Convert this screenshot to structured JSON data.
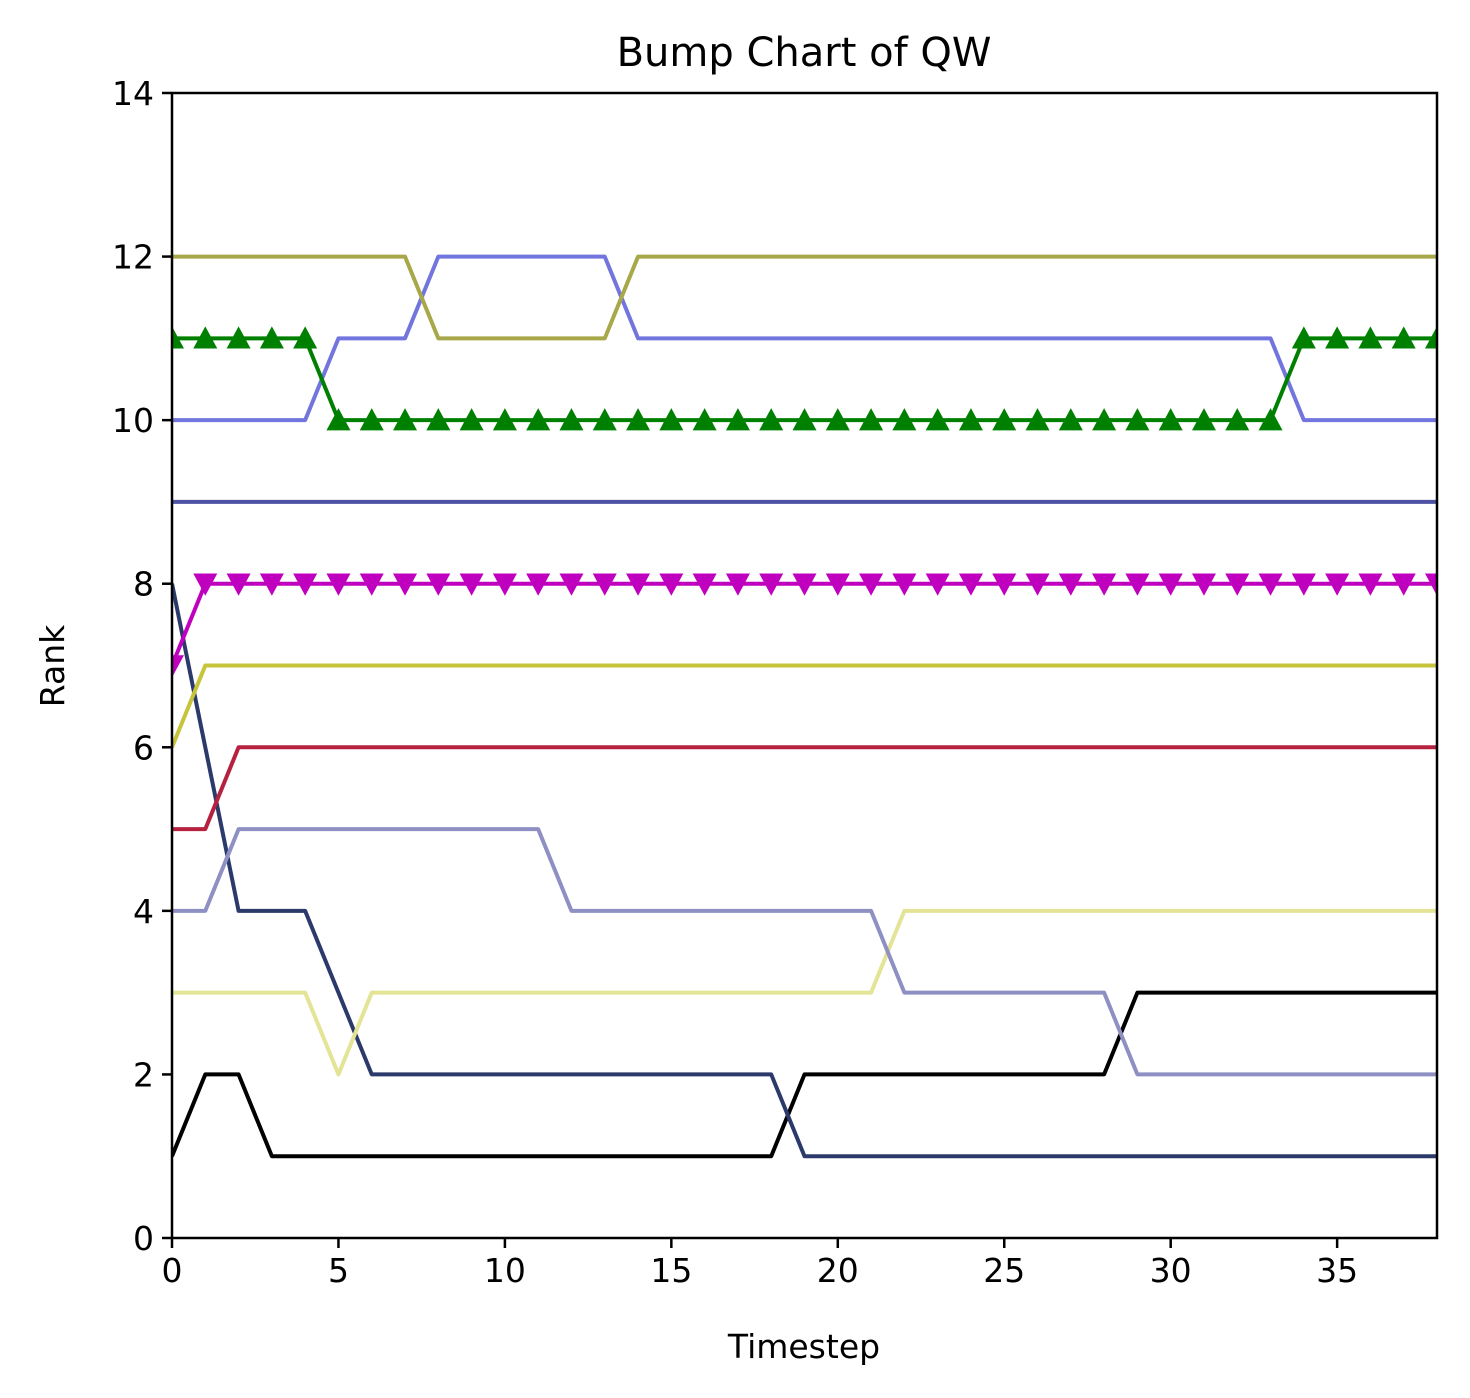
{
  "chart_data": {
    "type": "line",
    "title": "Bump Chart of QW",
    "xlabel": "Timestep",
    "ylabel": "Rank",
    "xlim": [
      0,
      38
    ],
    "ylim": [
      0,
      14
    ],
    "xticks": [
      0,
      5,
      10,
      15,
      20,
      25,
      30,
      35
    ],
    "yticks": [
      0,
      2,
      4,
      6,
      8,
      10,
      12,
      14
    ],
    "grid": false,
    "x": [
      0,
      1,
      2,
      3,
      4,
      5,
      6,
      7,
      8,
      9,
      10,
      11,
      12,
      13,
      14,
      15,
      16,
      17,
      18,
      19,
      20,
      21,
      22,
      23,
      24,
      25,
      26,
      27,
      28,
      29,
      30,
      31,
      32,
      33,
      34,
      35,
      36,
      37,
      38
    ],
    "series": [
      {
        "color": "#000000",
        "marker": "none",
        "values": [
          1,
          2,
          2,
          1,
          1,
          1,
          1,
          1,
          1,
          1,
          1,
          1,
          1,
          1,
          1,
          1,
          1,
          1,
          1,
          2,
          2,
          2,
          2,
          2,
          2,
          2,
          2,
          2,
          2,
          3,
          3,
          3,
          3,
          3,
          3,
          3,
          3,
          3,
          3
        ]
      },
      {
        "color": "#2b3a6b",
        "marker": "none",
        "values": [
          8,
          6,
          4,
          4,
          4,
          3,
          2,
          2,
          2,
          2,
          2,
          2,
          2,
          2,
          2,
          2,
          2,
          2,
          2,
          1,
          1,
          1,
          1,
          1,
          1,
          1,
          1,
          1,
          1,
          1,
          1,
          1,
          1,
          1,
          1,
          1,
          1,
          1,
          1
        ]
      },
      {
        "color": "#e3e495",
        "marker": "none",
        "values": [
          3,
          3,
          3,
          3,
          3,
          2,
          3,
          3,
          3,
          3,
          3,
          3,
          3,
          3,
          3,
          3,
          3,
          3,
          3,
          3,
          3,
          3,
          4,
          4,
          4,
          4,
          4,
          4,
          4,
          4,
          4,
          4,
          4,
          4,
          4,
          4,
          4,
          4,
          4
        ]
      },
      {
        "color": "#8e90c4",
        "marker": "none",
        "values": [
          4,
          4,
          5,
          5,
          5,
          5,
          5,
          5,
          5,
          5,
          5,
          5,
          4,
          4,
          4,
          4,
          4,
          4,
          4,
          4,
          4,
          4,
          3,
          3,
          3,
          3,
          3,
          3,
          3,
          2,
          2,
          2,
          2,
          2,
          2,
          2,
          2,
          2,
          2
        ]
      },
      {
        "color": "#b5213f",
        "marker": "none",
        "values": [
          5,
          5,
          6,
          6,
          6,
          6,
          6,
          6,
          6,
          6,
          6,
          6,
          6,
          6,
          6,
          6,
          6,
          6,
          6,
          6,
          6,
          6,
          6,
          6,
          6,
          6,
          6,
          6,
          6,
          6,
          6,
          6,
          6,
          6,
          6,
          6,
          6,
          6,
          6
        ]
      },
      {
        "color": "#c6c43a",
        "marker": "none",
        "values": [
          6,
          7,
          7,
          7,
          7,
          7,
          7,
          7,
          7,
          7,
          7,
          7,
          7,
          7,
          7,
          7,
          7,
          7,
          7,
          7,
          7,
          7,
          7,
          7,
          7,
          7,
          7,
          7,
          7,
          7,
          7,
          7,
          7,
          7,
          7,
          7,
          7,
          7,
          7
        ]
      },
      {
        "color": "#bf00bf",
        "marker": "triangle-down",
        "values": [
          7,
          8,
          8,
          8,
          8,
          8,
          8,
          8,
          8,
          8,
          8,
          8,
          8,
          8,
          8,
          8,
          8,
          8,
          8,
          8,
          8,
          8,
          8,
          8,
          8,
          8,
          8,
          8,
          8,
          8,
          8,
          8,
          8,
          8,
          8,
          8,
          8,
          8,
          8
        ]
      },
      {
        "color": "#4e52a3",
        "marker": "none",
        "values": [
          9,
          9,
          9,
          9,
          9,
          9,
          9,
          9,
          9,
          9,
          9,
          9,
          9,
          9,
          9,
          9,
          9,
          9,
          9,
          9,
          9,
          9,
          9,
          9,
          9,
          9,
          9,
          9,
          9,
          9,
          9,
          9,
          9,
          9,
          9,
          9,
          9,
          9,
          9
        ]
      },
      {
        "color": "#7375de",
        "marker": "none",
        "values": [
          10,
          10,
          10,
          10,
          10,
          11,
          11,
          11,
          12,
          12,
          12,
          12,
          12,
          12,
          11,
          11,
          11,
          11,
          11,
          11,
          11,
          11,
          11,
          11,
          11,
          11,
          11,
          11,
          11,
          11,
          11,
          11,
          11,
          11,
          10,
          10,
          10,
          10,
          10
        ]
      },
      {
        "color": "#008000",
        "marker": "triangle-up",
        "values": [
          11,
          11,
          11,
          11,
          11,
          10,
          10,
          10,
          10,
          10,
          10,
          10,
          10,
          10,
          10,
          10,
          10,
          10,
          10,
          10,
          10,
          10,
          10,
          10,
          10,
          10,
          10,
          10,
          10,
          10,
          10,
          10,
          10,
          10,
          11,
          11,
          11,
          11,
          11
        ]
      },
      {
        "color": "#a8a84a",
        "marker": "none",
        "values": [
          12,
          12,
          12,
          12,
          12,
          12,
          12,
          12,
          11,
          11,
          11,
          11,
          11,
          11,
          12,
          12,
          12,
          12,
          12,
          12,
          12,
          12,
          12,
          12,
          12,
          12,
          12,
          12,
          12,
          12,
          12,
          12,
          12,
          12,
          12,
          12,
          12,
          12,
          12
        ]
      }
    ]
  }
}
